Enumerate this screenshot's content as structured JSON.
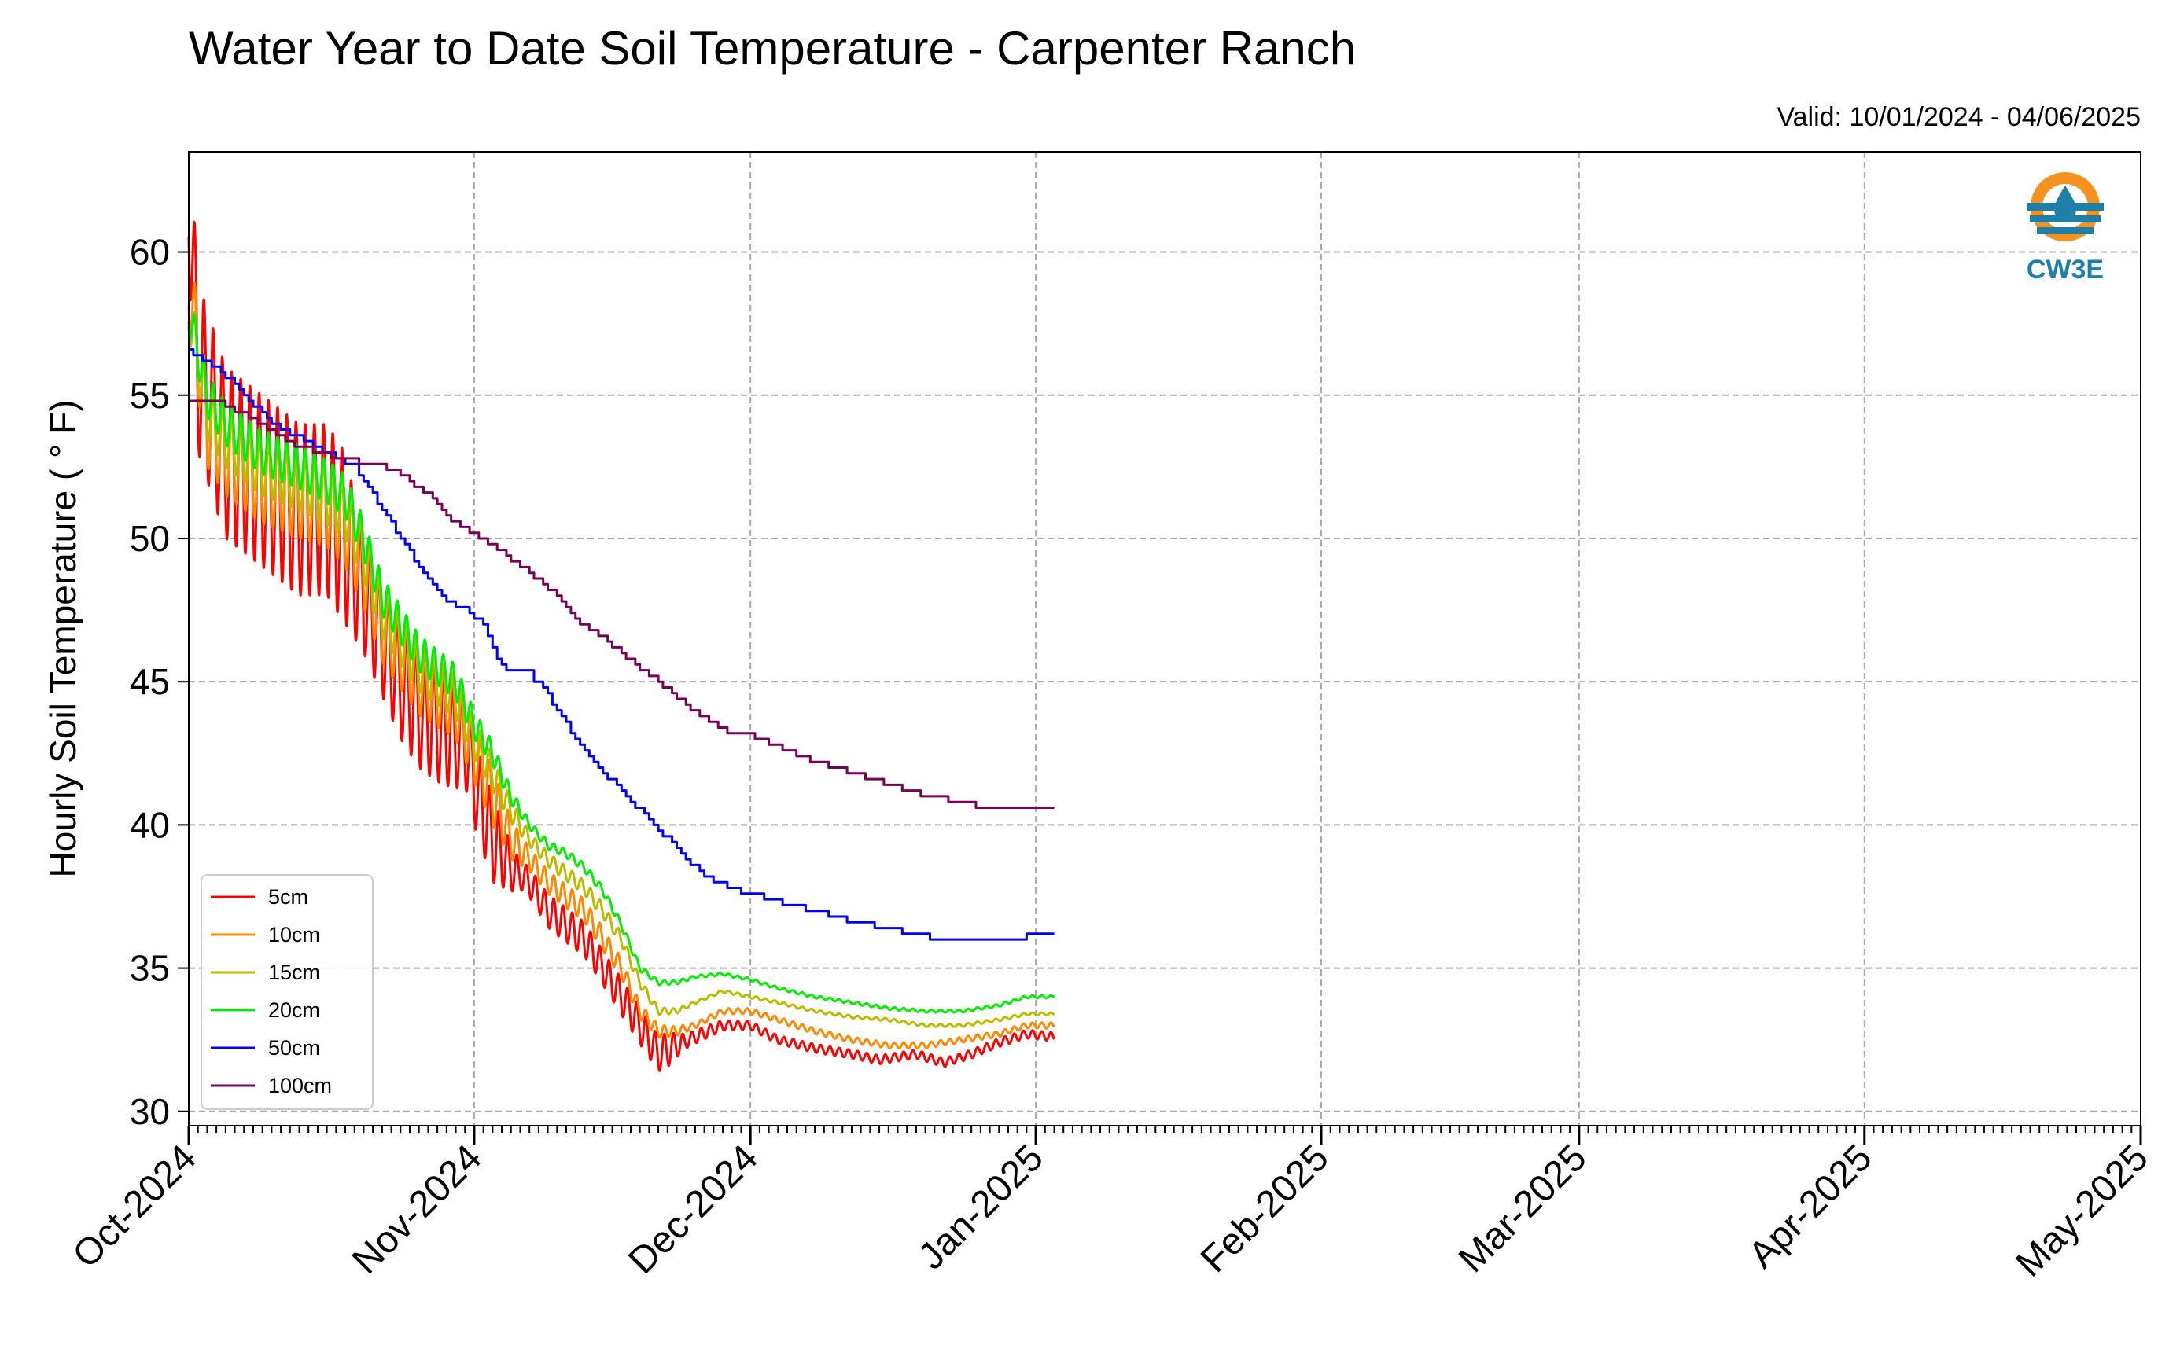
{
  "chart_data": {
    "type": "line",
    "title": "Water Year to Date Soil Temperature - Carpenter Ranch",
    "subtitle": "Valid: 10/01/2024 - 04/06/2025",
    "xlabel": "",
    "ylabel": "Hourly Soil Temperature ( ° F)",
    "x_unit": "day of water year (days since 2024-10-01)",
    "xlim": [
      0,
      212
    ],
    "ylim": [
      29.5,
      63.5
    ],
    "yticks": [
      30,
      35,
      40,
      45,
      50,
      55,
      60
    ],
    "xticks": [
      {
        "value": 0,
        "label": "Oct-2024"
      },
      {
        "value": 31,
        "label": "Nov-2024"
      },
      {
        "value": 61,
        "label": "Dec-2024"
      },
      {
        "value": 92,
        "label": "Jan-2025"
      },
      {
        "value": 123,
        "label": "Feb-2025"
      },
      {
        "value": 151,
        "label": "Mar-2025"
      },
      {
        "value": 182,
        "label": "Apr-2025"
      },
      {
        "value": 212,
        "label": "May-2025"
      }
    ],
    "grid": true,
    "legend_position": "lower-left",
    "logo_text": "CW3E",
    "series": [
      {
        "name": "5cm",
        "color": "#ff0000",
        "diurnal": true,
        "points": [
          [
            0,
            62
          ],
          [
            1,
            56
          ],
          [
            4,
            53
          ],
          [
            8,
            52
          ],
          [
            12,
            51
          ],
          [
            15,
            51
          ],
          [
            17,
            50
          ],
          [
            19,
            48
          ],
          [
            21,
            46.5
          ],
          [
            23,
            45
          ],
          [
            25,
            44
          ],
          [
            27,
            43.5
          ],
          [
            29,
            43
          ],
          [
            30,
            43
          ],
          [
            31,
            41.5
          ],
          [
            33,
            39.5
          ],
          [
            35,
            38.5
          ],
          [
            37,
            38
          ],
          [
            39,
            37
          ],
          [
            41,
            36.5
          ],
          [
            43,
            36
          ],
          [
            45,
            35
          ],
          [
            47,
            34
          ],
          [
            49,
            33
          ],
          [
            51,
            32
          ],
          [
            53,
            32.3
          ],
          [
            55,
            32.6
          ],
          [
            58,
            33
          ],
          [
            61,
            33
          ],
          [
            64,
            32.5
          ],
          [
            68,
            32.2
          ],
          [
            72,
            32
          ],
          [
            75,
            31.8
          ],
          [
            79,
            32
          ],
          [
            82,
            31.7
          ],
          [
            85,
            32
          ],
          [
            88,
            32.4
          ],
          [
            91,
            32.7
          ],
          [
            94,
            32.6
          ]
        ],
        "amp": [
          [
            0,
            5
          ],
          [
            1,
            6
          ],
          [
            15,
            6
          ],
          [
            17,
            6
          ],
          [
            19,
            4
          ],
          [
            23,
            4
          ],
          [
            27,
            4
          ],
          [
            31,
            3
          ],
          [
            33,
            3
          ],
          [
            36,
            1
          ],
          [
            40,
            1.2
          ],
          [
            45,
            1.2
          ],
          [
            49,
            1.3
          ],
          [
            52,
            1.2
          ],
          [
            54,
            0.5
          ],
          [
            60,
            0.3
          ],
          [
            94,
            0.3
          ]
        ]
      },
      {
        "name": "10cm",
        "color": "#ff8800",
        "diurnal": true,
        "points": [
          [
            0,
            59
          ],
          [
            2,
            54
          ],
          [
            4,
            53
          ],
          [
            8,
            52
          ],
          [
            12,
            51.5
          ],
          [
            15,
            51.2
          ],
          [
            17,
            50.5
          ],
          [
            19,
            49
          ],
          [
            21,
            47
          ],
          [
            23,
            46
          ],
          [
            25,
            45
          ],
          [
            27,
            44.5
          ],
          [
            29,
            44
          ],
          [
            31,
            42.5
          ],
          [
            33,
            41
          ],
          [
            35,
            39.5
          ],
          [
            37,
            38.8
          ],
          [
            39,
            38
          ],
          [
            41,
            37.5
          ],
          [
            43,
            37
          ],
          [
            45,
            36
          ],
          [
            47,
            35
          ],
          [
            49,
            33.5
          ],
          [
            51,
            32.8
          ],
          [
            53,
            32.8
          ],
          [
            55,
            33
          ],
          [
            58,
            33.5
          ],
          [
            61,
            33.5
          ],
          [
            64,
            33.2
          ],
          [
            68,
            32.8
          ],
          [
            72,
            32.5
          ],
          [
            76,
            32.3
          ],
          [
            80,
            32.3
          ],
          [
            84,
            32.5
          ],
          [
            88,
            32.7
          ],
          [
            91,
            33
          ],
          [
            94,
            33
          ]
        ],
        "amp": [
          [
            0,
            3
          ],
          [
            15,
            3
          ],
          [
            17,
            3
          ],
          [
            23,
            2.5
          ],
          [
            29,
            2
          ],
          [
            33,
            2
          ],
          [
            37,
            0.8
          ],
          [
            45,
            0.8
          ],
          [
            50,
            0.5
          ],
          [
            55,
            0.2
          ],
          [
            94,
            0.2
          ]
        ]
      },
      {
        "name": "15cm",
        "color": "#bbbb00",
        "diurnal": true,
        "points": [
          [
            0,
            58
          ],
          [
            2,
            54.5
          ],
          [
            4,
            53.5
          ],
          [
            8,
            52.5
          ],
          [
            12,
            52
          ],
          [
            15,
            51.5
          ],
          [
            17,
            51
          ],
          [
            19,
            49.5
          ],
          [
            21,
            47.5
          ],
          [
            23,
            46.5
          ],
          [
            25,
            45.5
          ],
          [
            27,
            45
          ],
          [
            29,
            44.5
          ],
          [
            31,
            43
          ],
          [
            33,
            41.8
          ],
          [
            35,
            40.5
          ],
          [
            37,
            39.5
          ],
          [
            39,
            38.8
          ],
          [
            41,
            38.3
          ],
          [
            43,
            37.8
          ],
          [
            45,
            37
          ],
          [
            47,
            36
          ],
          [
            49,
            34.5
          ],
          [
            51,
            33.5
          ],
          [
            53,
            33.5
          ],
          [
            55,
            33.8
          ],
          [
            58,
            34.2
          ],
          [
            61,
            34
          ],
          [
            64,
            33.8
          ],
          [
            68,
            33.5
          ],
          [
            72,
            33.3
          ],
          [
            76,
            33.2
          ],
          [
            80,
            33
          ],
          [
            84,
            33
          ],
          [
            88,
            33.2
          ],
          [
            91,
            33.4
          ],
          [
            94,
            33.4
          ]
        ],
        "amp": [
          [
            0,
            2
          ],
          [
            15,
            2
          ],
          [
            23,
            1.8
          ],
          [
            29,
            1.5
          ],
          [
            33,
            1.2
          ],
          [
            37,
            0.5
          ],
          [
            45,
            0.5
          ],
          [
            50,
            0.3
          ],
          [
            55,
            0.1
          ],
          [
            94,
            0.1
          ]
        ]
      },
      {
        "name": "20cm",
        "color": "#00ee00",
        "diurnal": true,
        "points": [
          [
            0,
            58
          ],
          [
            2,
            55
          ],
          [
            4,
            54
          ],
          [
            8,
            53
          ],
          [
            12,
            52.5
          ],
          [
            15,
            52
          ],
          [
            17,
            51.5
          ],
          [
            19,
            50
          ],
          [
            21,
            48
          ],
          [
            23,
            47
          ],
          [
            25,
            46
          ],
          [
            27,
            45.5
          ],
          [
            29,
            45
          ],
          [
            31,
            43.5
          ],
          [
            33,
            42.5
          ],
          [
            35,
            41
          ],
          [
            37,
            40
          ],
          [
            39,
            39.3
          ],
          [
            41,
            39
          ],
          [
            43,
            38.5
          ],
          [
            45,
            37.7
          ],
          [
            47,
            36.5
          ],
          [
            49,
            35
          ],
          [
            51,
            34.5
          ],
          [
            53,
            34.5
          ],
          [
            55,
            34.7
          ],
          [
            58,
            34.8
          ],
          [
            61,
            34.6
          ],
          [
            64,
            34.3
          ],
          [
            68,
            34
          ],
          [
            72,
            33.8
          ],
          [
            76,
            33.6
          ],
          [
            80,
            33.5
          ],
          [
            84,
            33.5
          ],
          [
            88,
            33.7
          ],
          [
            91,
            34
          ],
          [
            94,
            34
          ]
        ],
        "amp": [
          [
            0,
            1.5
          ],
          [
            15,
            1.5
          ],
          [
            23,
            1.3
          ],
          [
            29,
            1.2
          ],
          [
            33,
            0.8
          ],
          [
            37,
            0.3
          ],
          [
            45,
            0.3
          ],
          [
            55,
            0.1
          ],
          [
            94,
            0.1
          ]
        ]
      },
      {
        "name": "50cm",
        "color": "#0000ff",
        "diurnal": false,
        "points": [
          [
            0,
            56.5
          ],
          [
            3,
            56
          ],
          [
            6,
            55
          ],
          [
            9,
            54
          ],
          [
            12,
            53.5
          ],
          [
            15,
            53
          ],
          [
            18,
            52.5
          ],
          [
            20,
            51.5
          ],
          [
            22,
            50.5
          ],
          [
            24,
            49.5
          ],
          [
            26,
            48.5
          ],
          [
            28,
            47.8
          ],
          [
            30,
            47.5
          ],
          [
            32,
            47
          ],
          [
            34,
            45.5
          ],
          [
            37,
            45.3
          ],
          [
            39,
            44.5
          ],
          [
            41,
            43.5
          ],
          [
            43,
            42.5
          ],
          [
            46,
            41.5
          ],
          [
            49,
            40.5
          ],
          [
            52,
            39.5
          ],
          [
            55,
            38.5
          ],
          [
            57,
            38
          ],
          [
            59,
            37.8
          ],
          [
            62,
            37.5
          ],
          [
            65,
            37.2
          ],
          [
            68,
            37
          ],
          [
            71,
            36.7
          ],
          [
            74,
            36.5
          ],
          [
            77,
            36.3
          ],
          [
            80,
            36.1
          ],
          [
            83,
            36
          ],
          [
            86,
            36
          ],
          [
            89,
            36
          ],
          [
            91,
            36.1
          ],
          [
            94,
            36.1
          ]
        ]
      },
      {
        "name": "100cm",
        "color": "#7a005a",
        "diurnal": false,
        "points": [
          [
            0,
            54.8
          ],
          [
            3,
            54.8
          ],
          [
            6,
            54.3
          ],
          [
            9,
            53.7
          ],
          [
            12,
            53.2
          ],
          [
            15,
            52.9
          ],
          [
            18,
            52.7
          ],
          [
            20,
            52.6
          ],
          [
            22,
            52.4
          ],
          [
            24,
            52
          ],
          [
            26,
            51.5
          ],
          [
            28,
            50.8
          ],
          [
            30,
            50.3
          ],
          [
            32,
            50
          ],
          [
            34,
            49.5
          ],
          [
            37,
            48.8
          ],
          [
            40,
            48
          ],
          [
            42,
            47.2
          ],
          [
            45,
            46.5
          ],
          [
            48,
            45.7
          ],
          [
            51,
            45
          ],
          [
            54,
            44.2
          ],
          [
            56,
            43.7
          ],
          [
            58,
            43.3
          ],
          [
            61,
            43.1
          ],
          [
            64,
            42.7
          ],
          [
            67,
            42.3
          ],
          [
            70,
            42
          ],
          [
            73,
            41.7
          ],
          [
            76,
            41.4
          ],
          [
            79,
            41.1
          ],
          [
            82,
            40.9
          ],
          [
            85,
            40.7
          ],
          [
            88,
            40.6
          ],
          [
            91,
            40.5
          ],
          [
            94,
            40.5
          ]
        ]
      }
    ]
  }
}
